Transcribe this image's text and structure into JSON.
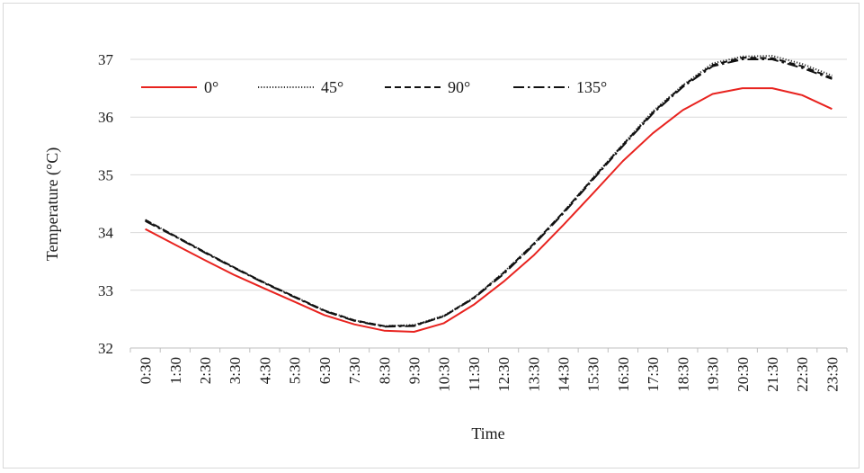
{
  "chart_data": {
    "type": "line",
    "xlabel": "Time",
    "ylabel": "Temperature (°C)",
    "ylim": [
      32,
      37
    ],
    "yticks": [
      32,
      33,
      34,
      35,
      36,
      37
    ],
    "grid": "horizontal",
    "legend_position": "top-left",
    "categories": [
      "0:30",
      "1:30",
      "2:30",
      "3:30",
      "4:30",
      "5:30",
      "6:30",
      "7:30",
      "8:30",
      "9:30",
      "10:30",
      "11:30",
      "12:30",
      "13:30",
      "14:30",
      "15:30",
      "16:30",
      "17:30",
      "18:30",
      "19:30",
      "20:30",
      "21:30",
      "22:30",
      "23:30"
    ],
    "series": [
      {
        "name": "0°",
        "color": "#e8231f",
        "dash": "solid",
        "values": [
          34.06,
          33.79,
          33.52,
          33.26,
          33.03,
          32.8,
          32.57,
          32.41,
          32.3,
          32.28,
          32.43,
          32.75,
          33.15,
          33.6,
          34.13,
          34.68,
          35.24,
          35.72,
          36.12,
          36.4,
          36.5,
          36.5,
          36.38,
          36.14
        ]
      },
      {
        "name": "45°",
        "color": "#333333",
        "dash": "dotted",
        "values": [
          34.22,
          33.94,
          33.66,
          33.39,
          33.13,
          32.89,
          32.65,
          32.48,
          32.38,
          32.4,
          32.56,
          32.87,
          33.31,
          33.8,
          34.35,
          34.95,
          35.53,
          36.1,
          36.55,
          36.93,
          37.05,
          37.06,
          36.92,
          36.72
        ]
      },
      {
        "name": "90°",
        "color": "#111111",
        "dash": "dashed",
        "values": [
          34.22,
          33.94,
          33.66,
          33.39,
          33.13,
          32.89,
          32.65,
          32.48,
          32.38,
          32.39,
          32.55,
          32.87,
          33.3,
          33.8,
          34.35,
          34.94,
          35.52,
          36.08,
          36.54,
          36.9,
          37.03,
          37.02,
          36.88,
          36.68
        ]
      },
      {
        "name": "135°",
        "color": "#111111",
        "dash": "dashdot",
        "values": [
          34.2,
          33.93,
          33.65,
          33.38,
          33.12,
          32.88,
          32.64,
          32.47,
          32.37,
          32.38,
          32.55,
          32.86,
          33.28,
          33.78,
          34.33,
          34.92,
          35.5,
          36.06,
          36.52,
          36.88,
          37.0,
          37.0,
          36.85,
          36.66
        ]
      }
    ]
  }
}
